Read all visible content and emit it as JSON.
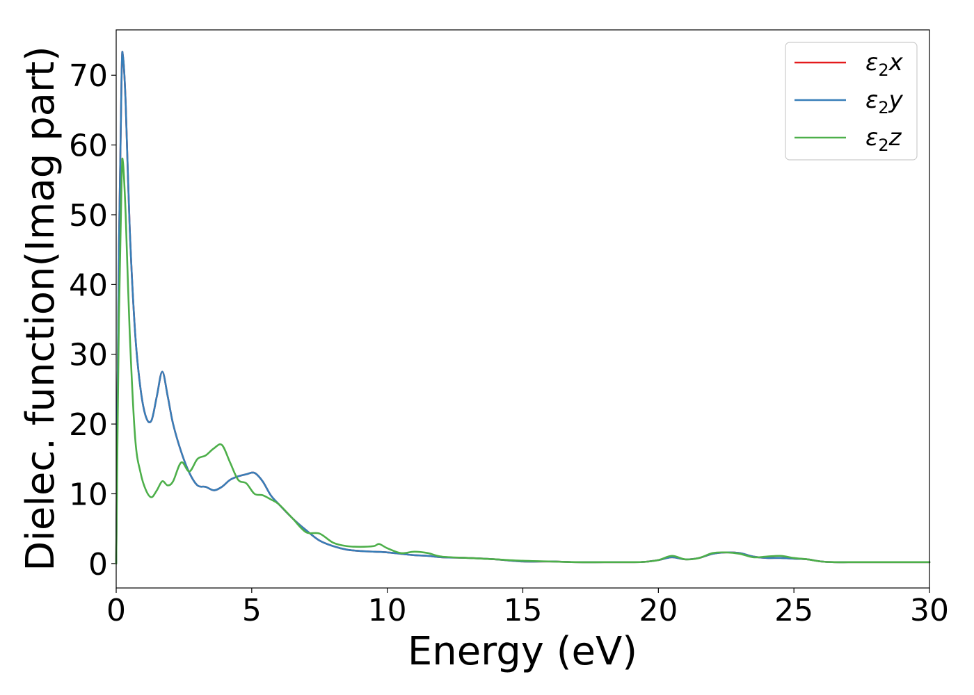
{
  "chart_data": {
    "type": "line",
    "title": "",
    "xlabel": "Energy (eV)",
    "ylabel": "Dielec. function(Imag part)",
    "xlim": [
      0,
      30
    ],
    "ylim": [
      -3.5,
      76.5
    ],
    "xticks": [
      "0",
      "5",
      "10",
      "15",
      "20",
      "25",
      "30"
    ],
    "yticks": [
      "0",
      "10",
      "20",
      "30",
      "40",
      "50",
      "60",
      "70"
    ],
    "grid": false,
    "legend_position": "top-right",
    "series": [
      {
        "name": "ε2x",
        "legend": {
          "main": "ε",
          "sub": "2",
          "tail": "x"
        },
        "color": "#e41a1c",
        "x": [
          0,
          0.1,
          0.2,
          0.25,
          0.35,
          0.5,
          0.7,
          0.9,
          1.1,
          1.3,
          1.5,
          1.7,
          1.9,
          2.1,
          2.4,
          2.7,
          3.0,
          3.3,
          3.6,
          3.9,
          4.2,
          4.5,
          4.8,
          5.1,
          5.4,
          5.7,
          6.0,
          6.5,
          7.0,
          7.5,
          8.0,
          8.5,
          9.0,
          9.5,
          10.0,
          10.5,
          11.0,
          11.5,
          12.0,
          13.0,
          14.0,
          15.0,
          16.0,
          17.0,
          18.0,
          19.0,
          19.5,
          20.0,
          20.5,
          21.0,
          21.5,
          22.0,
          22.5,
          23.0,
          23.5,
          24.0,
          24.5,
          25.0,
          25.5,
          26.0,
          26.5,
          27.0,
          27.5,
          28.0,
          28.5,
          29.0,
          29.5,
          30.0
        ],
        "y": [
          0,
          45,
          70,
          72.7,
          66,
          48,
          33,
          25,
          21,
          20.5,
          24,
          27.5,
          24,
          20,
          16,
          13,
          11.2,
          11,
          10.5,
          11,
          12,
          12.5,
          12.8,
          13,
          11.8,
          9.8,
          8.5,
          6.5,
          4.8,
          3.3,
          2.5,
          2.0,
          1.8,
          1.7,
          1.6,
          1.4,
          1.2,
          1.1,
          0.9,
          0.8,
          0.6,
          0.3,
          0.3,
          0.2,
          0.2,
          0.2,
          0.25,
          0.5,
          0.9,
          0.6,
          0.8,
          1.4,
          1.6,
          1.5,
          1.0,
          0.8,
          0.8,
          0.7,
          0.6,
          0.3,
          0.2,
          0.2,
          0.2,
          0.2,
          0.2,
          0.2,
          0.2,
          0.2
        ]
      },
      {
        "name": "ε2y",
        "legend": {
          "main": "ε",
          "sub": "2",
          "tail": "y"
        },
        "color": "#377eb8",
        "x": [
          0,
          0.1,
          0.2,
          0.25,
          0.35,
          0.5,
          0.7,
          0.9,
          1.1,
          1.3,
          1.5,
          1.7,
          1.9,
          2.1,
          2.4,
          2.7,
          3.0,
          3.3,
          3.6,
          3.9,
          4.2,
          4.5,
          4.8,
          5.1,
          5.4,
          5.7,
          6.0,
          6.5,
          7.0,
          7.5,
          8.0,
          8.5,
          9.0,
          9.5,
          10.0,
          10.5,
          11.0,
          11.5,
          12.0,
          13.0,
          14.0,
          15.0,
          16.0,
          17.0,
          18.0,
          19.0,
          19.5,
          20.0,
          20.5,
          21.0,
          21.5,
          22.0,
          22.5,
          23.0,
          23.5,
          24.0,
          24.5,
          25.0,
          25.5,
          26.0,
          26.5,
          27.0,
          27.5,
          28.0,
          28.5,
          29.0,
          29.5,
          30.0
        ],
        "y": [
          0,
          45,
          70,
          72.7,
          66,
          48,
          33,
          25,
          21,
          20.5,
          24,
          27.5,
          24,
          20,
          16,
          13,
          11.2,
          11,
          10.5,
          11,
          12,
          12.5,
          12.8,
          13,
          11.8,
          9.8,
          8.5,
          6.5,
          4.8,
          3.3,
          2.5,
          2.0,
          1.8,
          1.7,
          1.6,
          1.4,
          1.2,
          1.1,
          0.9,
          0.8,
          0.6,
          0.3,
          0.3,
          0.2,
          0.2,
          0.2,
          0.25,
          0.5,
          0.9,
          0.6,
          0.8,
          1.4,
          1.6,
          1.5,
          1.0,
          0.8,
          0.8,
          0.7,
          0.6,
          0.3,
          0.2,
          0.2,
          0.2,
          0.2,
          0.2,
          0.2,
          0.2,
          0.2
        ]
      },
      {
        "name": "ε2z",
        "legend": {
          "main": "ε",
          "sub": "2",
          "tail": "z"
        },
        "color": "#4daf4a",
        "x": [
          0,
          0.1,
          0.2,
          0.25,
          0.35,
          0.5,
          0.7,
          0.9,
          1.1,
          1.3,
          1.5,
          1.7,
          1.9,
          2.1,
          2.4,
          2.7,
          3.0,
          3.3,
          3.6,
          3.9,
          4.2,
          4.5,
          4.8,
          5.1,
          5.4,
          5.7,
          6.0,
          6.5,
          7.0,
          7.5,
          8.0,
          8.5,
          9.0,
          9.5,
          9.7,
          10.0,
          10.5,
          11.0,
          11.5,
          12.0,
          13.0,
          14.0,
          15.0,
          16.0,
          17.0,
          18.0,
          19.0,
          19.5,
          20.0,
          20.5,
          21.0,
          21.5,
          22.0,
          22.5,
          23.0,
          23.5,
          24.0,
          24.5,
          25.0,
          25.5,
          26.0,
          26.5,
          27.0,
          27.5,
          28.0,
          28.5,
          29.0,
          29.5,
          30.0
        ],
        "y": [
          0,
          35,
          55,
          57.5,
          50,
          33,
          18,
          13,
          10.5,
          9.5,
          10.5,
          11.8,
          11.2,
          11.8,
          14.5,
          13.2,
          15,
          15.5,
          16.5,
          17,
          14.5,
          12,
          11.5,
          10,
          9.8,
          9.2,
          8.5,
          6.5,
          4.5,
          4.3,
          3.0,
          2.5,
          2.4,
          2.5,
          2.8,
          2.2,
          1.5,
          1.7,
          1.5,
          1.0,
          0.8,
          0.6,
          0.4,
          0.3,
          0.2,
          0.2,
          0.2,
          0.25,
          0.5,
          1.1,
          0.6,
          0.8,
          1.5,
          1.6,
          1.4,
          0.9,
          1.0,
          1.1,
          0.8,
          0.6,
          0.3,
          0.2,
          0.2,
          0.2,
          0.2,
          0.2,
          0.2,
          0.2,
          0.2
        ]
      }
    ]
  }
}
